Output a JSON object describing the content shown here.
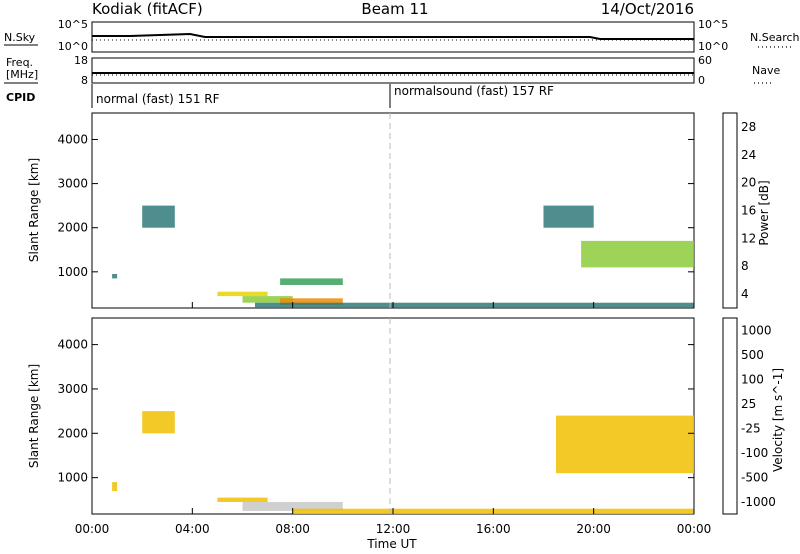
{
  "header": {
    "radar": "Kodiak (fitACF)",
    "beam": "Beam 11",
    "date": "14/Oct/2016"
  },
  "top_panels": {
    "nsky_label": "N.Sky",
    "nsearch_label": "N.Search",
    "nsky_ticks": [
      "10^5",
      "10^0"
    ],
    "freq_label_1": "Freq.",
    "freq_label_2": "[MHz]",
    "freq_ticks": [
      "18",
      "8"
    ],
    "nave_label": "Nave",
    "nave_ticks": [
      "60",
      "0"
    ],
    "cpid_label": "CPID",
    "cpid_segments": [
      {
        "label": "normal (fast) 151 RF",
        "start_hour": 0
      },
      {
        "label": "normalsound (fast) 157 RF",
        "start_hour": 12
      }
    ]
  },
  "power_panel": {
    "ylabel": "Slant Range [km]",
    "yticks": [
      "4000",
      "3000",
      "2000",
      "1000"
    ],
    "colorbar_label": "Power [dB]",
    "colorbar_ticks": [
      "28",
      "24",
      "20",
      "16",
      "12",
      "8",
      "4"
    ],
    "colors": [
      "#0000ff",
      "#1f3fa8",
      "#2f7a7a",
      "#3aa05a",
      "#8ccc3a",
      "#e6d400",
      "#f08a00",
      "#e00000"
    ]
  },
  "velocity_panel": {
    "ylabel": "Slant Range [km]",
    "yticks": [
      "4000",
      "3000",
      "2000",
      "1000"
    ],
    "colorbar_label": "Velocity [m s^-1]",
    "colorbar_ticks": [
      "1000",
      "500",
      "100",
      "25",
      "-25",
      "-100",
      "-500",
      "-1000"
    ],
    "colors": [
      "#1f3fa8",
      "#2f8a6a",
      "#6acc3a",
      "#c8c8c8",
      "#f0c000",
      "#f08a00",
      "#e02000",
      "#ff0000"
    ]
  },
  "xaxis": {
    "label": "Time UT",
    "ticks": [
      "00:00",
      "04:00",
      "08:00",
      "12:00",
      "16:00",
      "20:00",
      "00:00"
    ]
  },
  "chart_data": [
    {
      "type": "heatmap",
      "title": "Power",
      "xlabel": "Time UT",
      "ylabel": "Slant Range [km]",
      "xlim": [
        0,
        24
      ],
      "ylim": [
        180,
        4600
      ],
      "colorbar": {
        "label": "Power [dB]",
        "range": [
          0,
          30
        ]
      },
      "regions": [
        {
          "t0": 0.8,
          "t1": 1.0,
          "r0": 850,
          "r1": 950,
          "value": 8
        },
        {
          "t0": 2.0,
          "t1": 3.3,
          "r0": 2000,
          "r1": 2500,
          "value": 8
        },
        {
          "t0": 5.0,
          "t1": 7.0,
          "r0": 450,
          "r1": 550,
          "value": 20
        },
        {
          "t0": 6.0,
          "t1": 8.0,
          "r0": 300,
          "r1": 450,
          "value": 18
        },
        {
          "t0": 7.5,
          "t1": 10.0,
          "r0": 250,
          "r1": 400,
          "value": 24
        },
        {
          "t0": 7.5,
          "t1": 10.0,
          "r0": 700,
          "r1": 850,
          "value": 12
        },
        {
          "t0": 6.5,
          "t1": 24.0,
          "r0": 180,
          "r1": 300,
          "value": 8
        },
        {
          "t0": 18.0,
          "t1": 20.0,
          "r0": 2000,
          "r1": 2500,
          "value": 8
        },
        {
          "t0": 19.5,
          "t1": 24.0,
          "r0": 1100,
          "r1": 1700,
          "value": 18
        }
      ]
    },
    {
      "type": "heatmap",
      "title": "Velocity",
      "xlabel": "Time UT",
      "ylabel": "Slant Range [km]",
      "xlim": [
        0,
        24
      ],
      "ylim": [
        180,
        4600
      ],
      "colorbar": {
        "label": "Velocity [m s^-1]",
        "range": [
          -1000,
          1000
        ]
      },
      "regions": [
        {
          "t0": 0.8,
          "t1": 1.0,
          "r0": 700,
          "r1": 900,
          "value": 100
        },
        {
          "t0": 2.0,
          "t1": 3.3,
          "r0": 2000,
          "r1": 2500,
          "value": 0
        },
        {
          "t0": 5.0,
          "t1": 7.0,
          "r0": 450,
          "r1": 550,
          "value": 100
        },
        {
          "t0": 6.0,
          "t1": 10.0,
          "r0": 250,
          "r1": 450,
          "value": -100
        },
        {
          "t0": 8.0,
          "t1": 24.0,
          "r0": 180,
          "r1": 300,
          "value": 100
        },
        {
          "t0": 18.5,
          "t1": 24.0,
          "r0": 1100,
          "r1": 2400,
          "value": 0
        }
      ]
    }
  ]
}
